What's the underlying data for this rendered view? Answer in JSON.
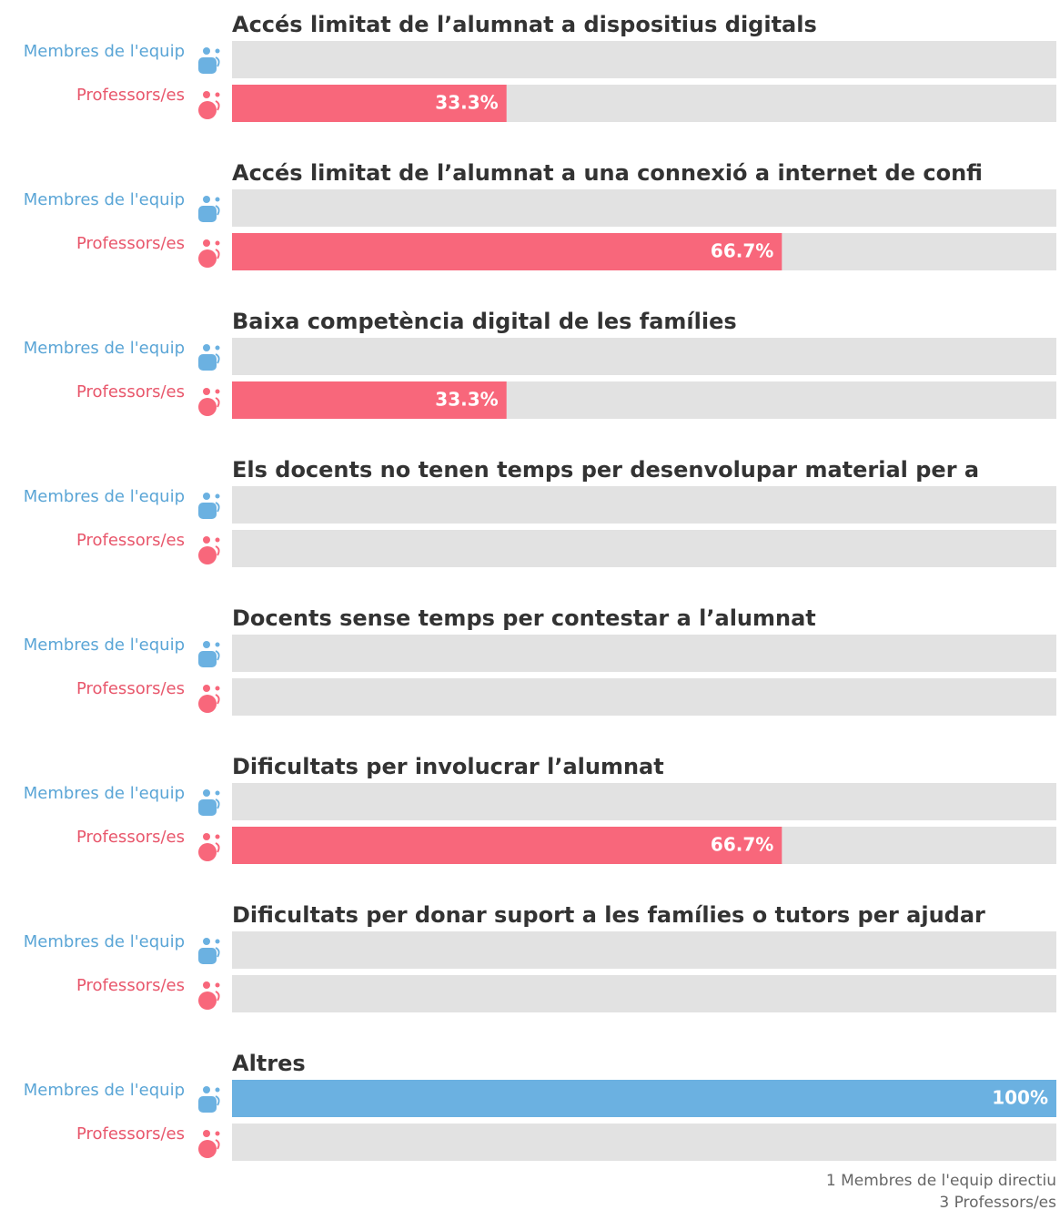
{
  "chart_data": {
    "type": "bar",
    "orientation": "horizontal",
    "categories": [
      "Accés limitat de l’alumnat a dispositius digitals",
      "Accés limitat de l’alumnat a una connexió a internet de confi",
      "Baixa competència digital de les famílies",
      "Els docents no tenen temps per desenvolupar material per a",
      "Docents sense temps per contestar a l’alumnat",
      "Dificultats per involucrar l’alumnat",
      "Dificultats per donar suport a les famílies o tutors per ajudar",
      "Altres"
    ],
    "series": [
      {
        "name": "Membres de l'equip",
        "color": "#6bb1e1",
        "label_color": "#5aa5d6",
        "values": [
          0,
          0,
          0,
          0,
          0,
          0,
          0,
          100
        ],
        "value_labels": [
          null,
          null,
          null,
          null,
          null,
          null,
          null,
          "100%"
        ]
      },
      {
        "name": "Professors/es",
        "color": "#f8677b",
        "label_color": "#e8566b",
        "values": [
          33.3,
          66.7,
          33.3,
          0,
          0,
          66.7,
          0,
          0
        ],
        "value_labels": [
          "33.3%",
          "66.7%",
          "33.3%",
          null,
          null,
          "66.7%",
          null,
          null
        ]
      }
    ],
    "xlim": [
      0,
      100
    ],
    "notes": [
      "1 Membres de l'equip directiu",
      "3 Professors/es"
    ]
  }
}
